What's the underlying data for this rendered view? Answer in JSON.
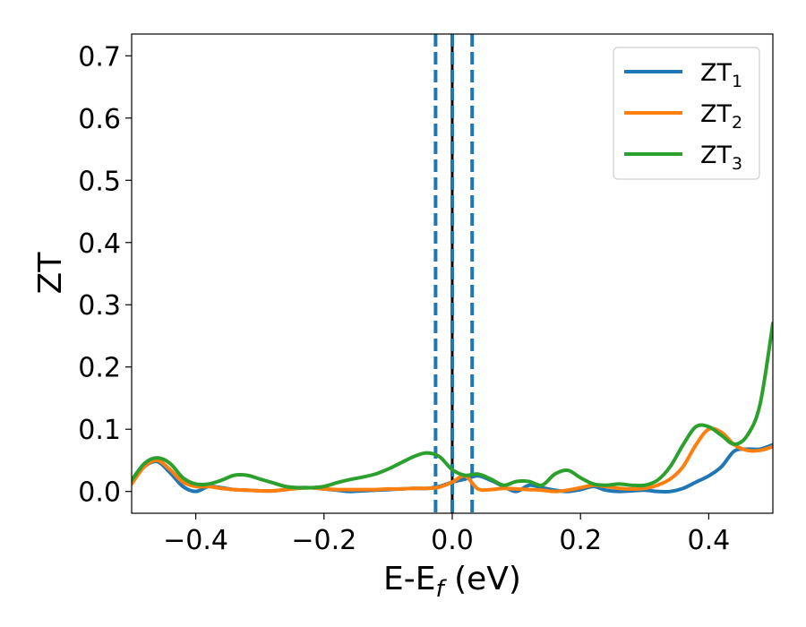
{
  "chart_data": {
    "type": "line",
    "xlabel": "E-E",
    "xlabel_sub": "f",
    "xlabel_unit": " (eV)",
    "ylabel": "ZT",
    "xlim": [
      -0.5,
      0.5
    ],
    "ylim": [
      -0.035,
      0.735
    ],
    "xticks": [
      -0.4,
      -0.2,
      0.0,
      0.2,
      0.4
    ],
    "xtick_labels": [
      "−0.4",
      "−0.2",
      "0.0",
      "0.2",
      "0.4"
    ],
    "yticks": [
      0.0,
      0.1,
      0.2,
      0.3,
      0.4,
      0.5,
      0.6,
      0.7
    ],
    "ytick_labels": [
      "0.0",
      "0.1",
      "0.2",
      "0.3",
      "0.4",
      "0.5",
      "0.6",
      "0.7"
    ],
    "grid": false,
    "legend_position": "top-right",
    "vlines": [
      {
        "x": 0.0,
        "style": "solid",
        "color": "#000000"
      },
      {
        "x": -0.026,
        "style": "dashed",
        "color": "#1f77b4"
      },
      {
        "x": 0.0,
        "style": "dashed",
        "color": "#1f77b4"
      },
      {
        "x": 0.031,
        "style": "dashed",
        "color": "#1f77b4"
      }
    ],
    "series": [
      {
        "name": "ZT",
        "name_sub": "1",
        "color": "#1f77b4",
        "x": [
          -0.5,
          -0.48,
          -0.46,
          -0.44,
          -0.42,
          -0.4,
          -0.38,
          -0.36,
          -0.34,
          -0.32,
          -0.3,
          -0.28,
          -0.26,
          -0.24,
          -0.22,
          -0.2,
          -0.18,
          -0.16,
          -0.14,
          -0.12,
          -0.1,
          -0.08,
          -0.06,
          -0.04,
          -0.02,
          0.0,
          0.02,
          0.04,
          0.06,
          0.08,
          0.1,
          0.12,
          0.14,
          0.16,
          0.18,
          0.2,
          0.22,
          0.24,
          0.26,
          0.28,
          0.3,
          0.32,
          0.34,
          0.36,
          0.38,
          0.4,
          0.42,
          0.44,
          0.46,
          0.48,
          0.5
        ],
        "y": [
          0.015,
          0.04,
          0.048,
          0.03,
          0.008,
          0.0,
          0.008,
          0.006,
          0.003,
          0.002,
          0.001,
          0.001,
          0.003,
          0.006,
          0.006,
          0.004,
          0.002,
          0.0,
          0.001,
          0.002,
          0.003,
          0.004,
          0.005,
          0.005,
          0.008,
          0.015,
          0.02,
          0.025,
          0.018,
          0.008,
          0.0,
          0.01,
          0.006,
          0.002,
          0.0,
          0.003,
          0.008,
          0.002,
          0.0,
          0.001,
          0.002,
          0.0,
          0.0,
          0.005,
          0.015,
          0.025,
          0.04,
          0.065,
          0.068,
          0.068,
          0.075
        ]
      },
      {
        "name": "ZT",
        "name_sub": "2",
        "color": "#ff7f0e",
        "x": [
          -0.5,
          -0.48,
          -0.46,
          -0.44,
          -0.42,
          -0.4,
          -0.38,
          -0.36,
          -0.34,
          -0.32,
          -0.3,
          -0.28,
          -0.26,
          -0.24,
          -0.22,
          -0.2,
          -0.18,
          -0.16,
          -0.14,
          -0.12,
          -0.1,
          -0.08,
          -0.06,
          -0.04,
          -0.02,
          0.0,
          0.02,
          0.04,
          0.06,
          0.08,
          0.1,
          0.12,
          0.14,
          0.16,
          0.18,
          0.2,
          0.22,
          0.24,
          0.26,
          0.28,
          0.3,
          0.32,
          0.34,
          0.36,
          0.38,
          0.4,
          0.42,
          0.44,
          0.46,
          0.48,
          0.5
        ],
        "y": [
          0.012,
          0.04,
          0.05,
          0.035,
          0.015,
          0.008,
          0.008,
          0.005,
          0.003,
          0.002,
          0.001,
          0.001,
          0.003,
          0.005,
          0.006,
          0.004,
          0.003,
          0.003,
          0.003,
          0.003,
          0.004,
          0.004,
          0.005,
          0.005,
          0.007,
          0.015,
          0.025,
          0.004,
          0.003,
          0.005,
          0.004,
          0.003,
          0.002,
          0.0,
          0.002,
          0.006,
          0.01,
          0.008,
          0.005,
          0.004,
          0.005,
          0.01,
          0.02,
          0.04,
          0.075,
          0.1,
          0.095,
          0.075,
          0.066,
          0.066,
          0.072
        ]
      },
      {
        "name": "ZT",
        "name_sub": "3",
        "color": "#2ca02c",
        "x": [
          -0.5,
          -0.48,
          -0.46,
          -0.44,
          -0.42,
          -0.4,
          -0.38,
          -0.36,
          -0.34,
          -0.32,
          -0.3,
          -0.28,
          -0.26,
          -0.24,
          -0.22,
          -0.2,
          -0.18,
          -0.16,
          -0.14,
          -0.12,
          -0.1,
          -0.08,
          -0.06,
          -0.04,
          -0.02,
          0.0,
          0.02,
          0.04,
          0.06,
          0.08,
          0.1,
          0.12,
          0.14,
          0.16,
          0.18,
          0.2,
          0.22,
          0.24,
          0.26,
          0.28,
          0.3,
          0.32,
          0.34,
          0.36,
          0.38,
          0.4,
          0.42,
          0.44,
          0.46,
          0.48,
          0.5
        ],
        "y": [
          0.018,
          0.045,
          0.054,
          0.045,
          0.022,
          0.012,
          0.012,
          0.018,
          0.026,
          0.026,
          0.02,
          0.014,
          0.008,
          0.006,
          0.006,
          0.008,
          0.014,
          0.019,
          0.023,
          0.028,
          0.036,
          0.046,
          0.056,
          0.062,
          0.056,
          0.035,
          0.026,
          0.028,
          0.02,
          0.01,
          0.016,
          0.016,
          0.01,
          0.028,
          0.034,
          0.022,
          0.012,
          0.01,
          0.012,
          0.01,
          0.01,
          0.018,
          0.04,
          0.075,
          0.104,
          0.104,
          0.09,
          0.076,
          0.09,
          0.14,
          0.27
        ]
      }
    ]
  }
}
